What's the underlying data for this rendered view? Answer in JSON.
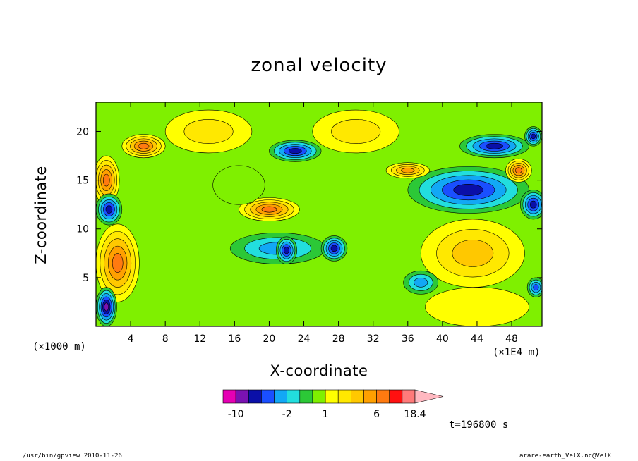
{
  "chart_data": {
    "type": "heatmap",
    "title": "zonal velocity",
    "xlabel": "X-coordinate",
    "ylabel": "Z-coordinate",
    "x_unit": "(×1E4 m)",
    "y_unit": "(×1000 m)",
    "xlim": [
      0,
      51.5
    ],
    "ylim": [
      0,
      23
    ],
    "x_ticks": [
      4,
      8,
      12,
      16,
      20,
      24,
      28,
      32,
      36,
      40,
      44,
      48
    ],
    "y_ticks": [
      5,
      10,
      15,
      20
    ],
    "colorbar": {
      "levels": [
        -16,
        -10,
        -6,
        -4,
        -3,
        -2,
        -1,
        0,
        1,
        2,
        3,
        4,
        6,
        10,
        14,
        18.4
      ],
      "colors": [
        "#e600b4",
        "#7a12b2",
        "#0a0fa8",
        "#1a4fff",
        "#12a8f5",
        "#22dede",
        "#2cc837",
        "#7ff000",
        "#ffff00",
        "#ffe800",
        "#ffc800",
        "#ffa000",
        "#ff7a10",
        "#ff1010",
        "#ff7a7a",
        "#ffb8c0"
      ],
      "tick_labels": [
        "-10",
        "-2",
        "1",
        "6",
        "18.4"
      ],
      "tick_values": [
        -10,
        -2,
        1,
        6,
        18.4
      ]
    },
    "features": [
      {
        "type": "ellipse",
        "x": 43,
        "y": 14,
        "rx": 7,
        "ry": 2.4,
        "value": -6
      },
      {
        "type": "ellipse",
        "x": 46,
        "y": 18.5,
        "rx": 4,
        "ry": 1.2,
        "value": -8
      },
      {
        "type": "ellipse",
        "x": 36,
        "y": 16,
        "rx": 2.5,
        "ry": 0.8,
        "value": 5
      },
      {
        "type": "ellipse",
        "x": 48.8,
        "y": 16,
        "rx": 1.5,
        "ry": 1.2,
        "value": 7
      },
      {
        "type": "ellipse",
        "x": 43.5,
        "y": 7.5,
        "rx": 6,
        "ry": 3.5,
        "value": 3
      },
      {
        "type": "ellipse",
        "x": 20,
        "y": 12,
        "rx": 3.5,
        "ry": 1.2,
        "value": 8
      },
      {
        "type": "ellipse",
        "x": 21,
        "y": 8,
        "rx": 5.5,
        "ry": 1.6,
        "value": -3
      },
      {
        "type": "ellipse",
        "x": 27.5,
        "y": 8,
        "rx": 1.5,
        "ry": 1.3,
        "value": -7
      },
      {
        "type": "ellipse",
        "x": 22,
        "y": 7.8,
        "rx": 1.2,
        "ry": 1.4,
        "value": -8
      },
      {
        "type": "ellipse",
        "x": 37.5,
        "y": 4.5,
        "rx": 2,
        "ry": 1.2,
        "value": -3
      },
      {
        "type": "ellipse",
        "x": 5.5,
        "y": 18.5,
        "rx": 2.5,
        "ry": 1.2,
        "value": 6
      },
      {
        "type": "ellipse",
        "x": 1.2,
        "y": 15,
        "rx": 1.5,
        "ry": 2.5,
        "value": 7
      },
      {
        "type": "ellipse",
        "x": 1.5,
        "y": 12,
        "rx": 1.5,
        "ry": 1.6,
        "value": -8
      },
      {
        "type": "ellipse",
        "x": 2.5,
        "y": 6.5,
        "rx": 2.5,
        "ry": 4,
        "value": 6
      },
      {
        "type": "ellipse",
        "x": 1.2,
        "y": 2,
        "rx": 1.2,
        "ry": 2,
        "value": -10
      },
      {
        "type": "ellipse",
        "x": 23,
        "y": 18,
        "rx": 3,
        "ry": 1.1,
        "value": -6
      },
      {
        "type": "ellipse",
        "x": 30,
        "y": 20,
        "rx": 5,
        "ry": 2.2,
        "value": 2
      },
      {
        "type": "ellipse",
        "x": 13,
        "y": 20,
        "rx": 5,
        "ry": 2.2,
        "value": 2
      },
      {
        "type": "ellipse",
        "x": 50.5,
        "y": 19.5,
        "rx": 1,
        "ry": 1,
        "value": -7
      },
      {
        "type": "ellipse",
        "x": 50.5,
        "y": 12.5,
        "rx": 1.5,
        "ry": 1.5,
        "value": -6
      },
      {
        "type": "ellipse",
        "x": 50.8,
        "y": 4,
        "rx": 1,
        "ry": 1,
        "value": -4
      },
      {
        "type": "ellipse",
        "x": 16.5,
        "y": 14.5,
        "rx": 3,
        "ry": 2,
        "value": 0.5
      },
      {
        "type": "ellipse",
        "x": 44,
        "y": 2,
        "rx": 6,
        "ry": 2,
        "value": 1.5
      }
    ],
    "background_value": 0
  },
  "footer": {
    "time": "t=196800 s",
    "left": "/usr/bin/gpview  2010-11-26",
    "right": "arare-earth_VelX.nc@VelX"
  }
}
